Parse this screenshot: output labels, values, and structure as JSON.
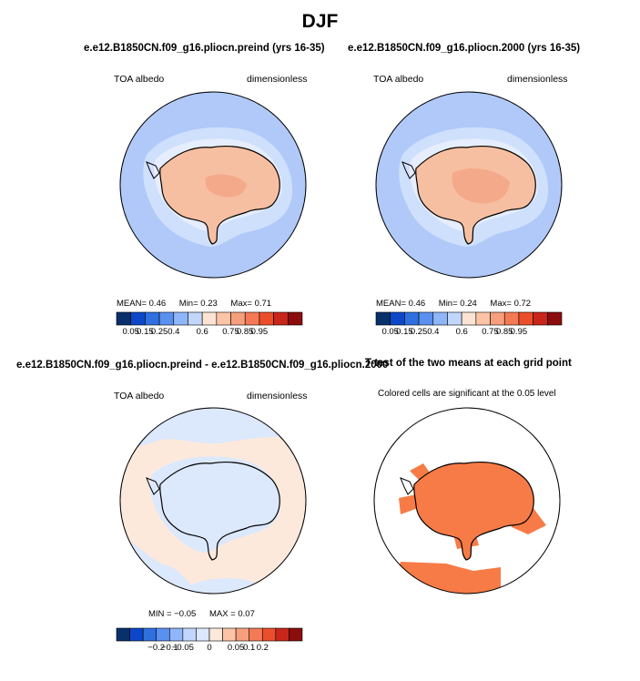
{
  "main_title": "DJF",
  "panels": [
    {
      "title": "e.e12.B1850CN.f09_g16.pliocn.preind (yrs 16-35)",
      "left_label": "TOA albedo",
      "right_label": "dimensionless",
      "stats": {
        "mean_label": "MEAN=",
        "mean": "0.46",
        "min_label": "Min=",
        "min": "0.23",
        "max_label": "Max=",
        "max": "0.71"
      }
    },
    {
      "title": "e.e12.B1850CN.f09_g16.pliocn.2000 (yrs 16-35)",
      "left_label": "TOA albedo",
      "right_label": "dimensionless",
      "stats": {
        "mean_label": "MEAN=",
        "mean": "0.46",
        "min_label": "Min=",
        "min": "0.24",
        "max_label": "Max=",
        "max": "0.72"
      }
    },
    {
      "title": "e.e12.B1850CN.f09_g16.pliocn.preind - e.e12.B1850CN.f09_g16.pliocn.2000",
      "left_label": "TOA albedo",
      "right_label": "dimensionless",
      "stats": {
        "min_label": "MIN =",
        "min": "−0.05",
        "max_label": "MAX =",
        "max": "0.07"
      }
    },
    {
      "title": "T-test of the two means at each grid point",
      "subtitle": "Colored cells are significant at the 0.05 level"
    }
  ],
  "colorbars": {
    "abs": {
      "colors": [
        "#08306b",
        "#0d47c9",
        "#2f6fe0",
        "#5a90f0",
        "#8fb6f8",
        "#c2d6fb",
        "#fde4d2",
        "#fbc4a6",
        "#f79f7c",
        "#f47a55",
        "#ec4e2c",
        "#c8261a",
        "#8b0d0d"
      ],
      "ticks": [
        "0.05",
        "0.15",
        "0.25",
        "0.4",
        "0.6",
        "0.75",
        "0.85",
        "0.95"
      ],
      "tick_boundaries": [
        1,
        2,
        3,
        4,
        6,
        8,
        9,
        10
      ]
    },
    "diff": {
      "colors": [
        "#08306b",
        "#0d47c9",
        "#2f6fe0",
        "#5a90f0",
        "#8fb6f8",
        "#c2d6fb",
        "#dce8fc",
        "#fde9dc",
        "#fbc4a6",
        "#f79f7c",
        "#f47a55",
        "#ec4e2c",
        "#c8261a",
        "#8b0d0d"
      ],
      "ticks": [
        "−0.2",
        "−0.1",
        "−0.05",
        "0",
        "0.05",
        "0.1",
        "0.2"
      ],
      "tick_boundaries": [
        3,
        4,
        5,
        7,
        9,
        10,
        11
      ]
    }
  },
  "chart_data": [
    {
      "type": "heatmap",
      "title": "e.e12.B1850CN.f09_g16.pliocn.preind (yrs 16-35)",
      "variable": "TOA albedo",
      "units": "dimensionless",
      "season": "DJF",
      "projection": "south polar stereographic",
      "mean": 0.46,
      "min": 0.23,
      "max": 0.71,
      "colorbar_ticks": [
        0.05,
        0.15,
        0.25,
        0.4,
        0.6,
        0.75,
        0.85,
        0.95
      ],
      "colors": {
        "ocean": "#b1c9f9",
        "sea_ice": "#cfe0fc",
        "continent": "#f7bfa2",
        "interior": "#f4a98b"
      }
    },
    {
      "type": "heatmap",
      "title": "e.e12.B1850CN.f09_g16.pliocn.2000 (yrs 16-35)",
      "variable": "TOA albedo",
      "units": "dimensionless",
      "season": "DJF",
      "projection": "south polar stereographic",
      "mean": 0.46,
      "min": 0.24,
      "max": 0.72,
      "colorbar_ticks": [
        0.05,
        0.15,
        0.25,
        0.4,
        0.6,
        0.75,
        0.85,
        0.95
      ],
      "colors": {
        "ocean": "#b1c9f9",
        "sea_ice": "#cfe0fc",
        "continent": "#f7bfa2",
        "interior": "#f4a98b"
      }
    },
    {
      "type": "heatmap",
      "title": "e.e12.B1850CN.f09_g16.pliocn.preind - e.e12.B1850CN.f09_g16.pliocn.2000",
      "variable": "TOA albedo",
      "units": "dimensionless",
      "season": "DJF",
      "projection": "south polar stereographic",
      "min": -0.05,
      "max": 0.07,
      "colorbar_ticks": [
        -0.2,
        -0.1,
        -0.05,
        0,
        0.05,
        0.1,
        0.2
      ],
      "colors": {
        "negative": "#dce8fc",
        "positive": "#fde9dc"
      }
    },
    {
      "type": "heatmap",
      "title": "T-test of the two means at each grid point",
      "subtitle": "Colored cells are significant at the 0.05 level",
      "significance_level": 0.05,
      "projection": "south polar stereographic",
      "colors": {
        "significant": "#f77b46",
        "not_significant": "#ffffff"
      }
    }
  ]
}
